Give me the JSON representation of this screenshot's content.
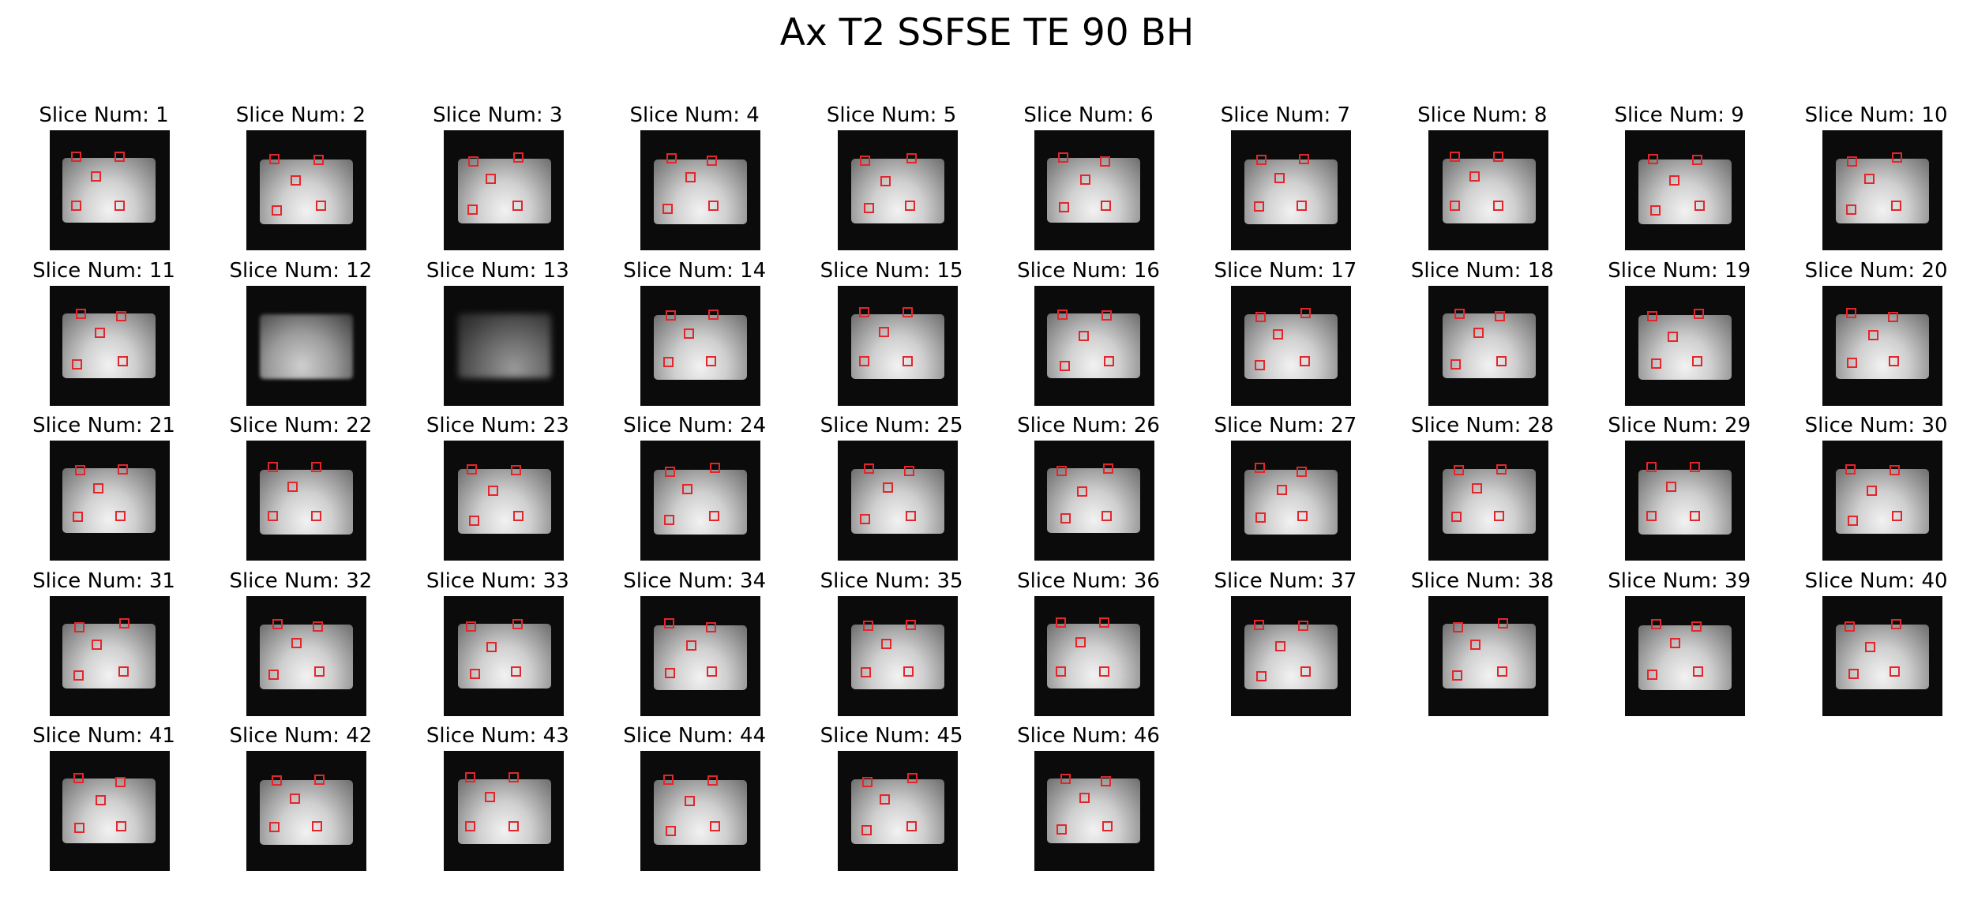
{
  "figure": {
    "title": "Ax T2 SSFSE TE 90 BH",
    "label_prefix": "Slice Num: ",
    "roi_color": "#e3262b",
    "columns": 10,
    "slices": [
      {
        "num": "1"
      },
      {
        "num": "2"
      },
      {
        "num": "3"
      },
      {
        "num": "4"
      },
      {
        "num": "5"
      },
      {
        "num": "6"
      },
      {
        "num": "7"
      },
      {
        "num": "8"
      },
      {
        "num": "9"
      },
      {
        "num": "10"
      },
      {
        "num": "11"
      },
      {
        "num": "12",
        "rois": false,
        "intensity": "faint"
      },
      {
        "num": "13",
        "rois": false,
        "intensity": "very-faint"
      },
      {
        "num": "14"
      },
      {
        "num": "15"
      },
      {
        "num": "16"
      },
      {
        "num": "17"
      },
      {
        "num": "18"
      },
      {
        "num": "19"
      },
      {
        "num": "20"
      },
      {
        "num": "21"
      },
      {
        "num": "22"
      },
      {
        "num": "23"
      },
      {
        "num": "24"
      },
      {
        "num": "25"
      },
      {
        "num": "26"
      },
      {
        "num": "27"
      },
      {
        "num": "28"
      },
      {
        "num": "29"
      },
      {
        "num": "30"
      },
      {
        "num": "31"
      },
      {
        "num": "32"
      },
      {
        "num": "33"
      },
      {
        "num": "34"
      },
      {
        "num": "35"
      },
      {
        "num": "36"
      },
      {
        "num": "37"
      },
      {
        "num": "38"
      },
      {
        "num": "39"
      },
      {
        "num": "40"
      },
      {
        "num": "41"
      },
      {
        "num": "42"
      },
      {
        "num": "43"
      },
      {
        "num": "44"
      },
      {
        "num": "45"
      },
      {
        "num": "46"
      }
    ]
  }
}
